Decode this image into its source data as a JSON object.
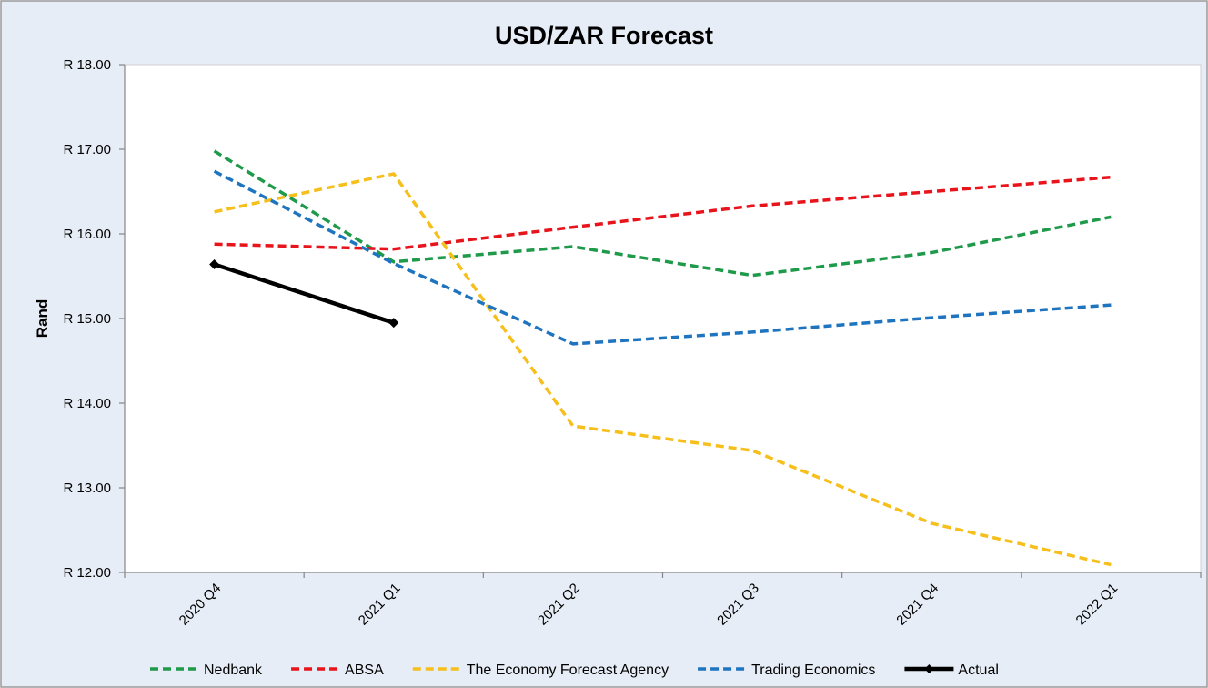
{
  "chart_data": {
    "type": "line",
    "title": "USD/ZAR Forecast",
    "xlabel": "",
    "ylabel": "Rand",
    "categories": [
      "2020 Q4",
      "2021 Q1",
      "2021 Q2",
      "2021 Q3",
      "2021 Q4",
      "2022 Q1"
    ],
    "ylim": [
      12.0,
      18.0
    ],
    "yticks": [
      12.0,
      13.0,
      14.0,
      15.0,
      16.0,
      17.0,
      18.0
    ],
    "ytick_labels": [
      "R 12.00",
      "R 13.00",
      "R 14.00",
      "R 15.00",
      "R 16.00",
      "R 17.00",
      "R 18.00"
    ],
    "grid": false,
    "legend_position": "bottom",
    "series": [
      {
        "name": "Nedbank",
        "color": "#1e9a4a",
        "style": "dashed",
        "values": [
          16.98,
          15.67,
          15.85,
          15.51,
          15.78,
          16.2
        ]
      },
      {
        "name": "ABSA",
        "color": "#e8141c",
        "style": "dashed",
        "values": [
          15.88,
          15.82,
          16.08,
          16.33,
          16.5,
          16.67
        ]
      },
      {
        "name": "The Economy Forecast Agency",
        "color": "#f6bf1b",
        "style": "dashed",
        "values": [
          16.26,
          16.71,
          13.73,
          13.44,
          12.58,
          12.09
        ]
      },
      {
        "name": "Trading Economics",
        "color": "#1f74c0",
        "style": "dashed",
        "values": [
          16.74,
          15.65,
          14.7,
          14.84,
          15.01,
          15.16
        ]
      },
      {
        "name": "Actual",
        "color": "#000000",
        "style": "solid-marker",
        "values": [
          15.64,
          14.95,
          null,
          null,
          null,
          null
        ]
      }
    ]
  }
}
